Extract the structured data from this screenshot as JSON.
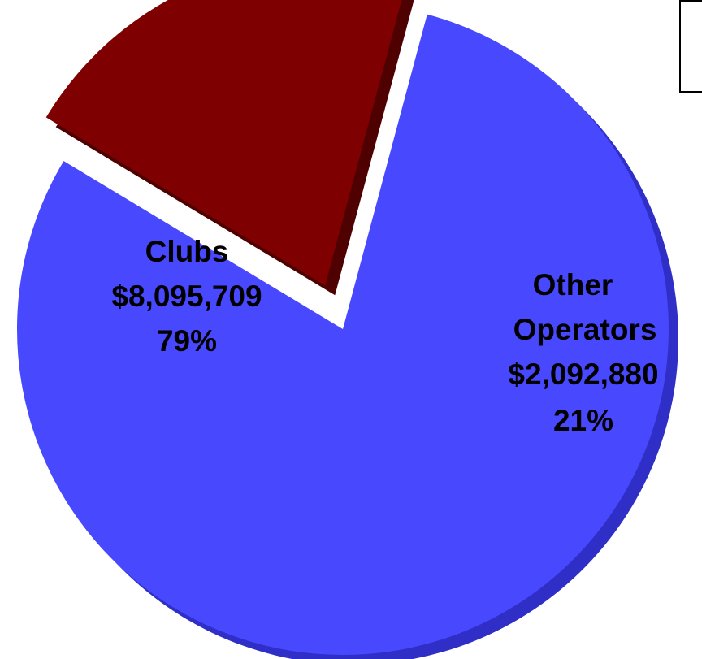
{
  "chart_data": {
    "type": "pie",
    "title": "",
    "slices": [
      {
        "name": "Clubs",
        "value": 8095709,
        "value_label": "$8,095,709",
        "percent_label": "79%",
        "percent": 79,
        "color": "#4848FF",
        "side_color": "#2F2FC8",
        "exploded": false
      },
      {
        "name": "Other Operators",
        "name_lines": [
          "Other",
          "Operators"
        ],
        "value": 2092880,
        "value_label": "$2,092,880",
        "percent_label": "21%",
        "percent": 21,
        "color": "#7F0000",
        "side_color": "#4F0000",
        "exploded": true
      }
    ],
    "legend": "top-right"
  }
}
